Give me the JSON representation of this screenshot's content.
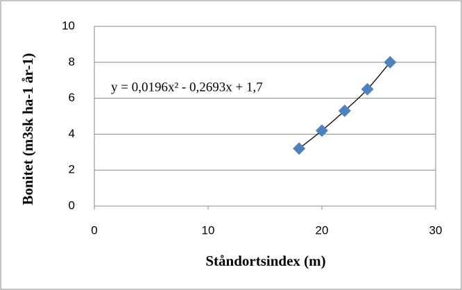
{
  "chart_data": {
    "type": "scatter",
    "annotation": "y = 0,0196x² - 0,2693x + 1,7",
    "x_label": "Ståndortsindex (m)",
    "y_label": "Bonitet (m3sk ha-1 år-1)",
    "x": [
      18,
      20,
      22,
      24,
      26
    ],
    "values": [
      3.2,
      4.2,
      5.3,
      6.5,
      8.0
    ],
    "color": "#4f81bd",
    "xlim": [
      0,
      30
    ],
    "xticks": [
      0,
      10,
      20,
      30
    ],
    "ylim": [
      0,
      10
    ],
    "yticks": [
      0,
      2,
      4,
      6,
      8,
      10
    ],
    "grid": true
  }
}
